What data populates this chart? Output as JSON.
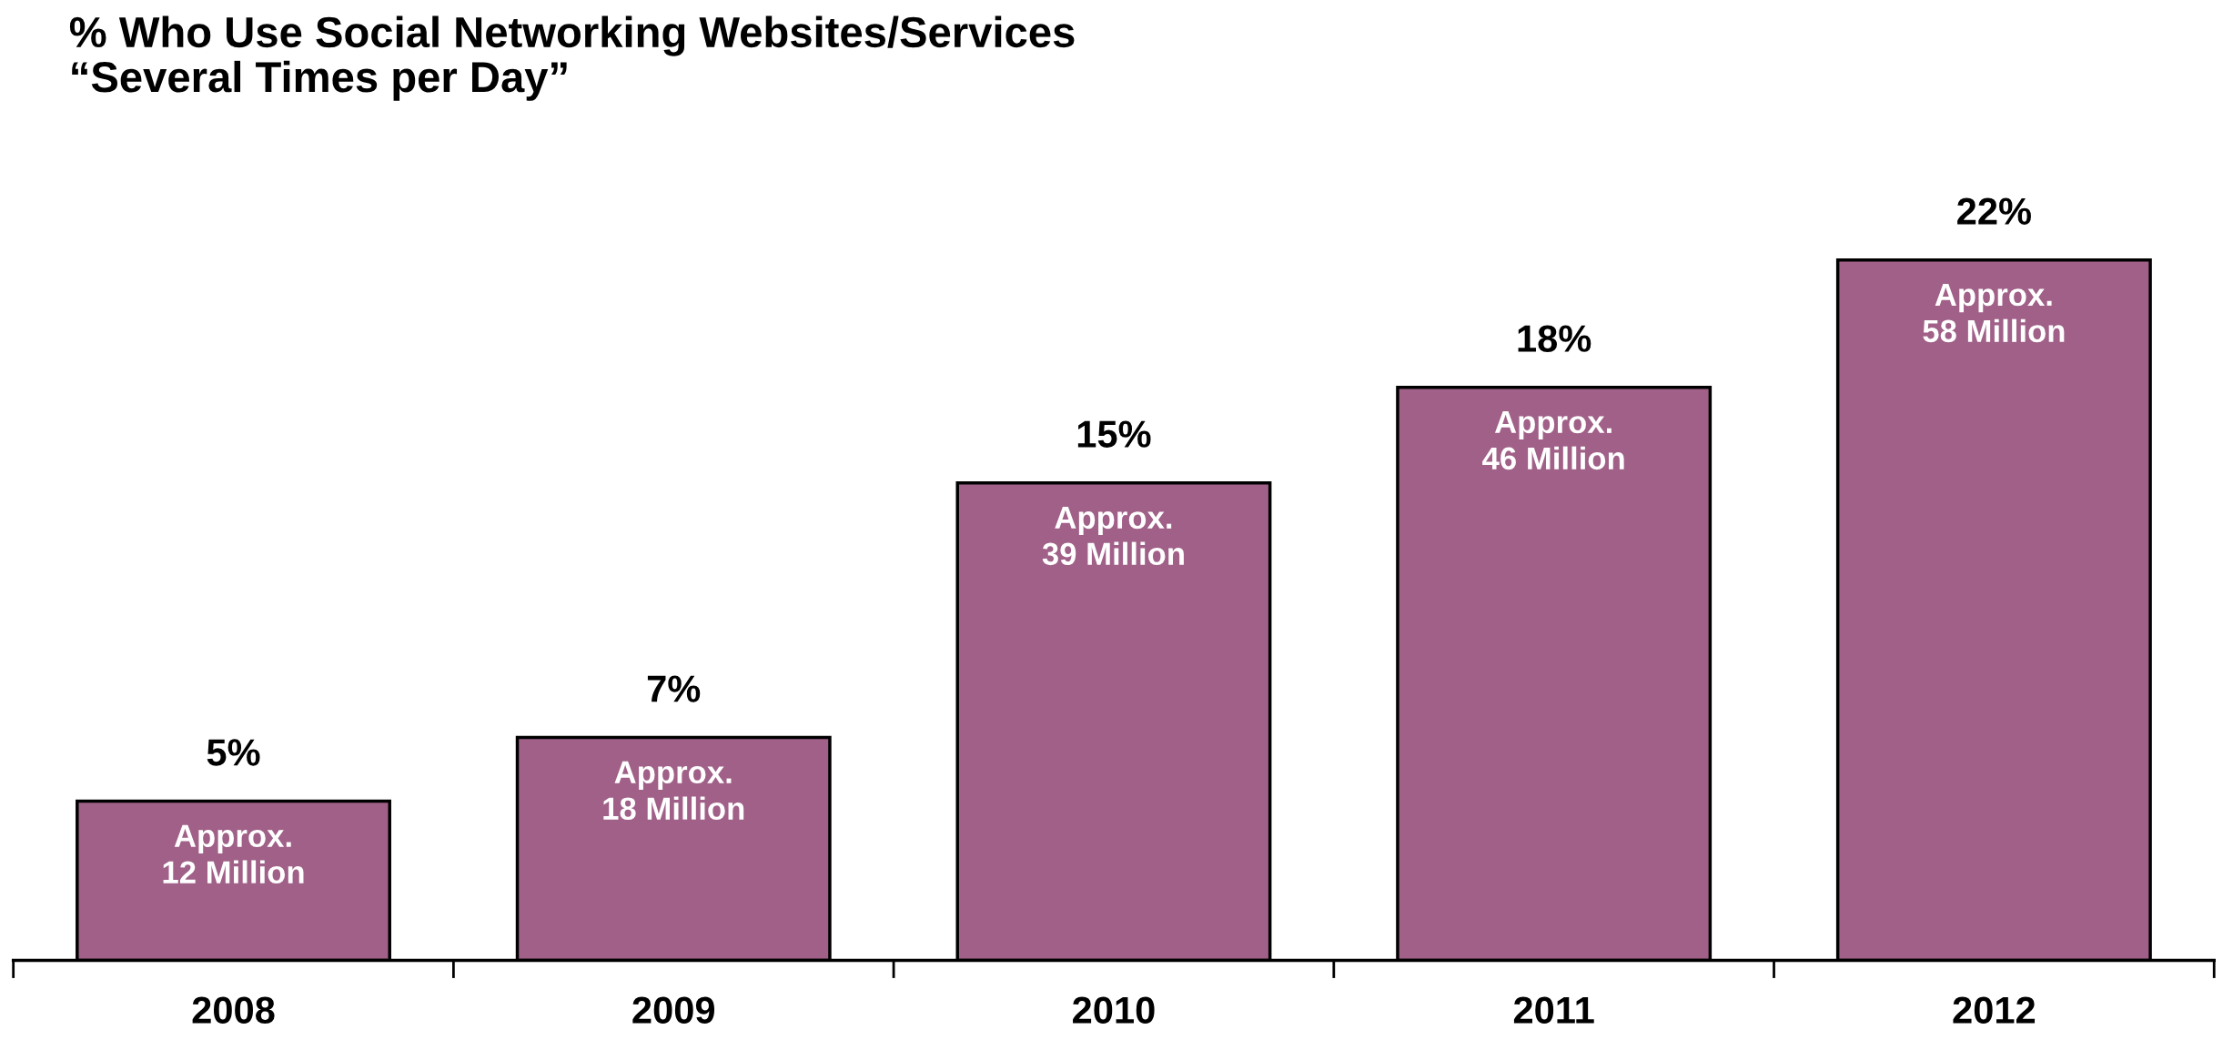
{
  "chart_data": {
    "type": "bar",
    "title": "% Who Use Social Networking Websites/Services\n“Several Times per Day”",
    "categories": [
      "2008",
      "2009",
      "2010",
      "2011",
      "2012"
    ],
    "values": [
      5,
      7,
      15,
      18,
      22
    ],
    "color": "#a06088",
    "value_labels": [
      "5%",
      "7%",
      "15%",
      "18%",
      "22%"
    ],
    "annotations": [
      {
        "text": "Approx.\n12 Million",
        "x": "2008",
        "y": 5
      },
      {
        "text": "Approx.\n18 Million",
        "x": "2009",
        "y": 7
      },
      {
        "text": "Approx.\n39 Million",
        "x": "2010",
        "y": 15
      },
      {
        "text": "Approx.\n46 Million",
        "x": "2011",
        "y": 18
      },
      {
        "text": "Approx.\n58 Million",
        "x": "2012",
        "y": 22
      }
    ],
    "grid": false,
    "legend": false
  }
}
